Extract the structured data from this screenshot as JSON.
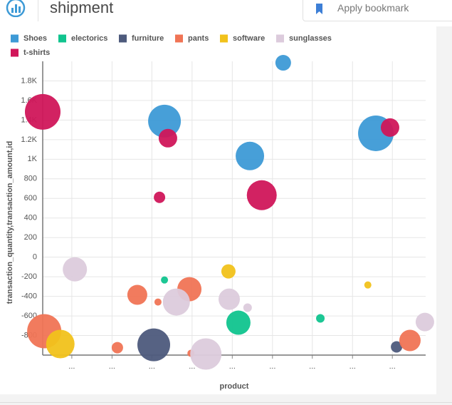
{
  "header": {
    "title": "shipment",
    "bookmark_placeholder": "Apply bookmark"
  },
  "chart_data": {
    "type": "bubble",
    "x_label": "product",
    "y_label": "transaction_quantity,transaction_amount,id",
    "xlim": [
      0,
      100
    ],
    "xticks": [
      {
        "value": 7.6,
        "label": "..."
      },
      {
        "value": 18.1,
        "label": "..."
      },
      {
        "value": 28.5,
        "label": "..."
      },
      {
        "value": 39,
        "label": "..."
      },
      {
        "value": 49.5,
        "label": "..."
      },
      {
        "value": 60,
        "label": "..."
      },
      {
        "value": 70.4,
        "label": "..."
      },
      {
        "value": 80.9,
        "label": "..."
      },
      {
        "value": 91.3,
        "label": "..."
      }
    ],
    "ylim": [
      -1000,
      2000
    ],
    "yticks": [
      {
        "value": -800,
        "label": "-800"
      },
      -600,
      -400,
      -200,
      0,
      200,
      400,
      600,
      800,
      {
        "value": 1000,
        "label": "1K"
      },
      {
        "value": 1200,
        "label": "1.2K"
      },
      {
        "value": 1400,
        "label": "1.4K"
      },
      {
        "value": 1600,
        "label": "1.6K"
      },
      {
        "value": 1800,
        "label": "1.8K"
      }
    ],
    "grid": true,
    "series": [
      {
        "name": "Shoes",
        "color": "#3d9ad6",
        "x": [
          62.8,
          31.8,
          54.1,
          87.0
        ],
        "values": [
          1985,
          1389,
          1033,
          1265
        ],
        "sizes": [
          11,
          23,
          20,
          25
        ]
      },
      {
        "name": "electorics",
        "color": "#10c48e",
        "x": [
          31.8,
          51.1,
          72.5
        ],
        "values": [
          -233,
          -669,
          -625
        ],
        "sizes": [
          5,
          17,
          6
        ]
      },
      {
        "name": "furniture",
        "color": "#4d5a7c",
        "x": [
          29.0,
          92.4
        ],
        "values": [
          -895,
          -916
        ],
        "sizes": [
          23,
          8
        ]
      },
      {
        "name": "pants",
        "color": "#f07455",
        "x": [
          0.4,
          19.5,
          24.7,
          30.1,
          38.3,
          38.7,
          95.9
        ],
        "values": [
          -756,
          -924,
          -385,
          -458,
          -327,
          -982,
          -851
        ],
        "sizes": [
          24,
          8,
          14,
          5,
          17,
          5,
          15
        ]
      },
      {
        "name": "software",
        "color": "#f1c21b",
        "x": [
          4.6,
          48.5,
          84.9
        ],
        "values": [
          -887,
          -145,
          -284
        ],
        "sizes": [
          20,
          10,
          5
        ]
      },
      {
        "name": "sunglasses",
        "color": "#dccbdc",
        "x": [
          8.4,
          34.9,
          42.6,
          48.7,
          53.5,
          99.8
        ],
        "values": [
          -124,
          -458,
          -989,
          -429,
          -516,
          -662
        ],
        "sizes": [
          17,
          19,
          22,
          15,
          6,
          13
        ]
      },
      {
        "name": "t-shirts",
        "color": "#d0165a",
        "x": [
          0,
          32.7,
          30.5,
          57.2,
          90.7
        ],
        "values": [
          1484,
          1215,
          611,
          633,
          1324
        ],
        "sizes": [
          25,
          13,
          8,
          21,
          13
        ]
      }
    ]
  }
}
